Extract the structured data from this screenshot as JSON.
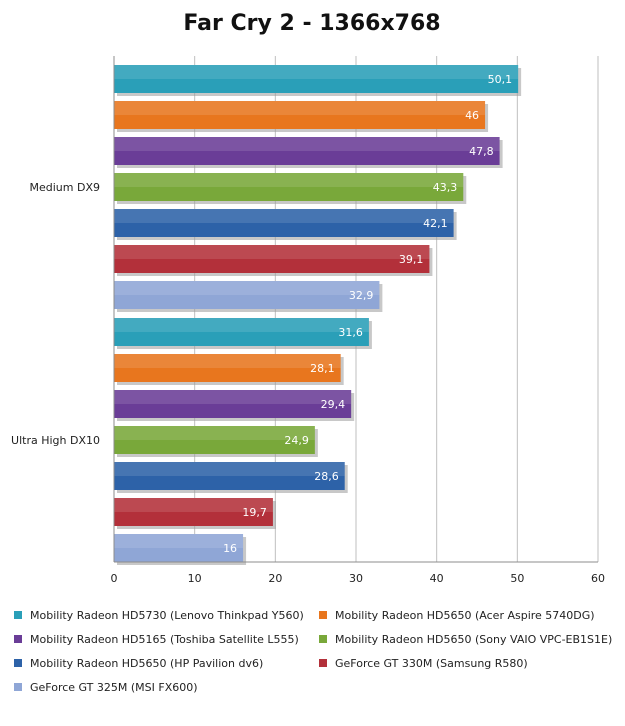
{
  "chart_data": {
    "type": "bar",
    "orientation": "horizontal",
    "title": "Far Cry 2 - 1366x768",
    "categories": [
      "Medium DX9",
      "Ultra High DX10"
    ],
    "series": [
      {
        "name": "Mobility Radeon HD5730 (Lenovo Thinkpad Y560)",
        "values": [
          50.1,
          31.6
        ],
        "labels": [
          "50,1",
          "31,6"
        ],
        "color": "#2a9fb8"
      },
      {
        "name": "Mobility Radeon HD5650 (Acer Aspire 5740DG)",
        "values": [
          46,
          28.1
        ],
        "labels": [
          "46",
          "28,1"
        ],
        "color": "#e8761e"
      },
      {
        "name": "Mobility Radeon HD5165 (Toshiba Satellite L555)",
        "values": [
          47.8,
          29.4
        ],
        "labels": [
          "47,8",
          "29,4"
        ],
        "color": "#6a3d97"
      },
      {
        "name": "Mobility Radeon HD5650 (Sony VAIO VPC-EB1S1E)",
        "values": [
          43.3,
          24.9
        ],
        "labels": [
          "43,3",
          "24,9"
        ],
        "color": "#79a83a"
      },
      {
        "name": "Mobility Radeon HD5650 (HP Pavilion dv6)",
        "values": [
          42.1,
          28.6
        ],
        "labels": [
          "42,1",
          "28,6"
        ],
        "color": "#2d62a8"
      },
      {
        "name": "GeForce GT 330M (Samsung R580)",
        "values": [
          39.1,
          19.7
        ],
        "labels": [
          "39,1",
          "19,7"
        ],
        "color": "#b3303a"
      },
      {
        "name": "GeForce GT 325M (MSI FX600)",
        "values": [
          32.9,
          16
        ],
        "labels": [
          "32,9",
          "16"
        ],
        "color": "#8fa6d6"
      }
    ],
    "xlim": [
      0,
      60
    ],
    "ticks": [
      "0",
      "10",
      "20",
      "30",
      "40",
      "50",
      "60"
    ],
    "grid": true,
    "legend_position": "bottom"
  }
}
